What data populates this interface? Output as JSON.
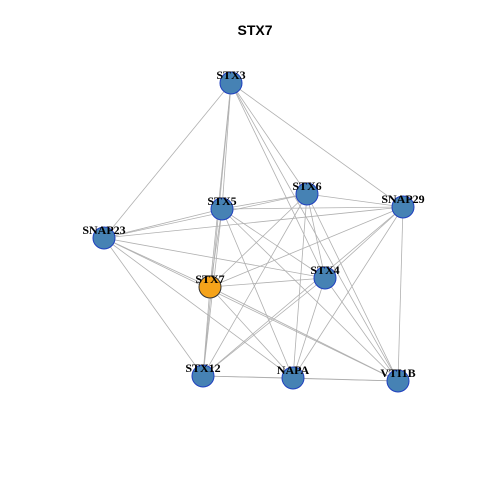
{
  "title": "STX7",
  "nodes": [
    {
      "label": "STX3"
    },
    {
      "label": "STX6"
    },
    {
      "label": "SNAP29"
    },
    {
      "label": "STX5"
    },
    {
      "label": "SNAP23"
    },
    {
      "label": "STX4"
    },
    {
      "label": "STX7"
    },
    {
      "label": "STX12"
    },
    {
      "label": "NAPA"
    },
    {
      "label": "VTI1B"
    }
  ]
}
